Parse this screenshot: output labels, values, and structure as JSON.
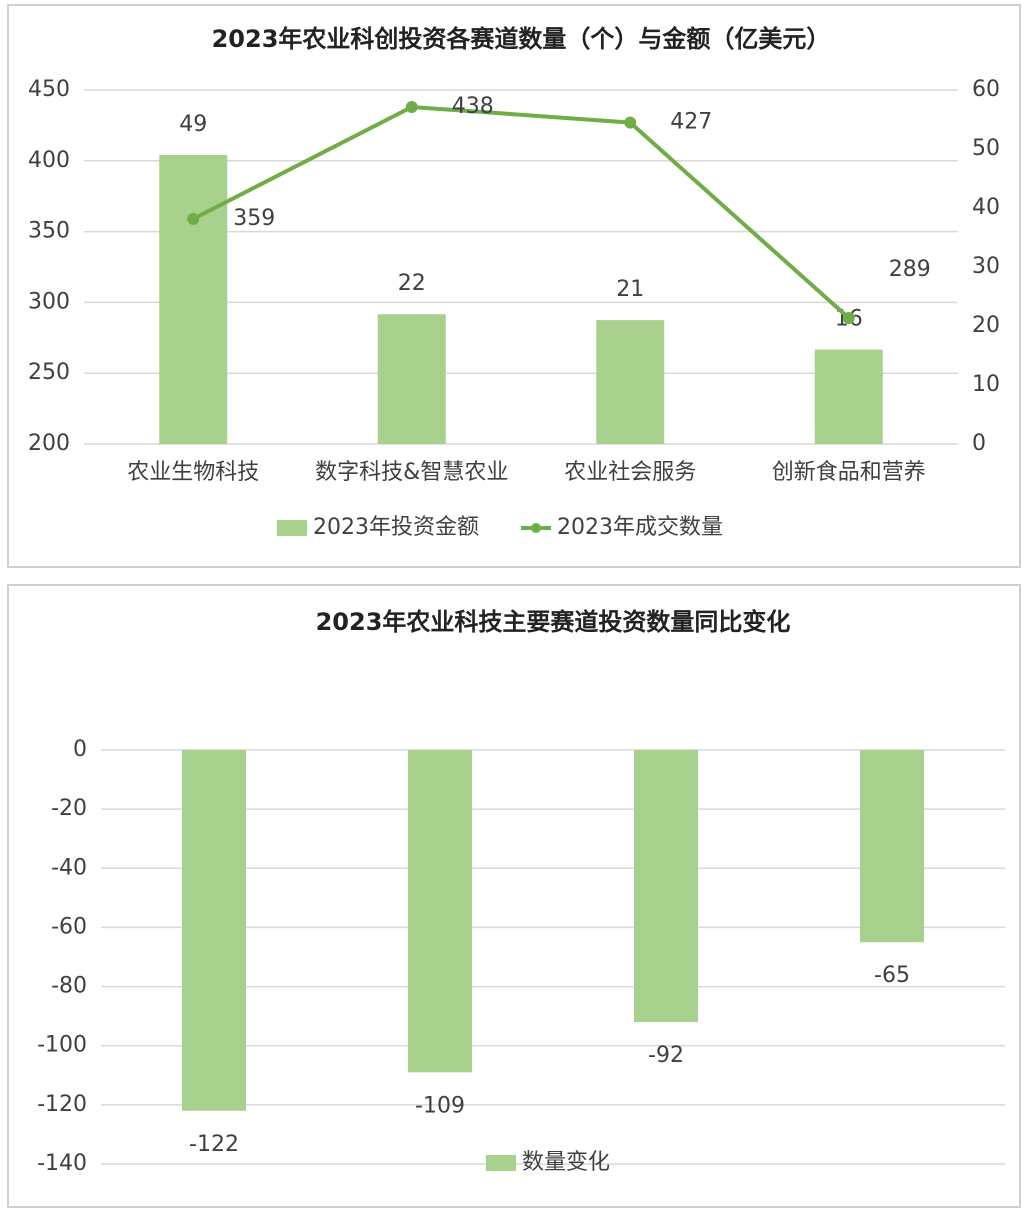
{
  "chart_data": [
    {
      "type": "combo",
      "title": "2023年农业科创投资各赛道数量（个）与金额（亿美元）",
      "categories": [
        "农业生物科技",
        "数字科技&智慧农业",
        "农业社会服务",
        "创新食品和营养"
      ],
      "series": [
        {
          "name": "2023年投资金额",
          "type": "bar",
          "axis": "y2",
          "color": "#a9d18e",
          "values": [
            49,
            22,
            21,
            16
          ]
        },
        {
          "name": "2023年成交数量",
          "type": "line",
          "color": "#70ad47",
          "values": [
            359,
            438,
            427,
            289
          ]
        }
      ],
      "ylim": [
        200,
        450
      ],
      "yticks": [
        200,
        250,
        300,
        350,
        400,
        450
      ],
      "y2lim": [
        0,
        60
      ],
      "y2ticks": [
        0,
        10,
        20,
        30,
        40,
        50,
        60
      ],
      "grid": true,
      "legend": "bottom"
    },
    {
      "type": "bar",
      "title": "2023年农业科技主要赛道投资数量同比变化",
      "categories": [
        null,
        null,
        null,
        null
      ],
      "series": [
        {
          "name": "数量变化",
          "type": "bar",
          "color": "#a9d18e",
          "values": [
            -122,
            -109,
            -92,
            -65
          ]
        }
      ],
      "ylim": [
        -140,
        0
      ],
      "yticks": [
        -140,
        -120,
        -100,
        -80,
        -60,
        -40,
        -20,
        0
      ],
      "grid": true,
      "legend": "bottom"
    }
  ]
}
